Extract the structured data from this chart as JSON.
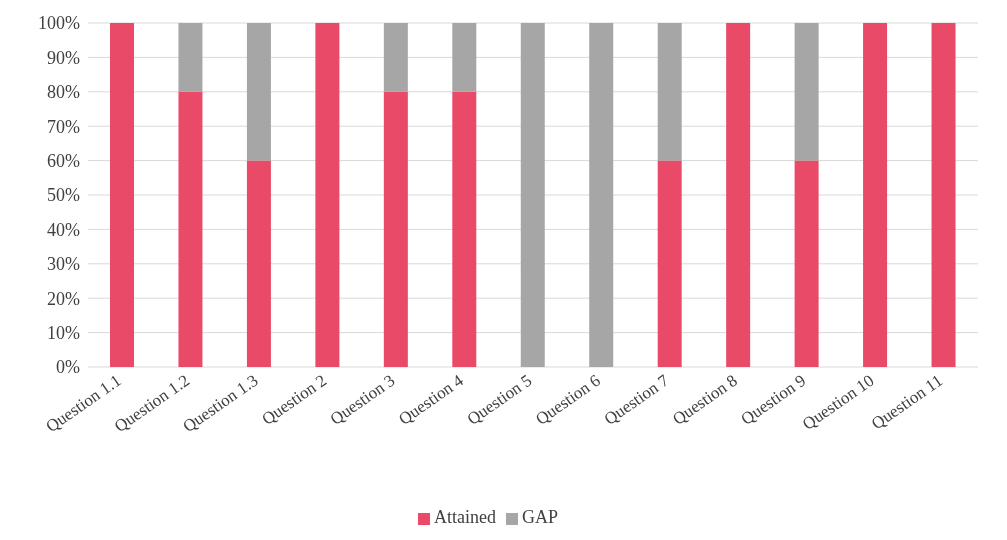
{
  "chart_data": {
    "type": "bar",
    "stacked": true,
    "categories": [
      "Question 1.1",
      "Question 1.2",
      "Question 1.3",
      "Question 2",
      "Question 3",
      "Question 4",
      "Question 5",
      "Question 6",
      "Question 7",
      "Question 8",
      "Question 9",
      "Question 10",
      "Question 11"
    ],
    "series": [
      {
        "name": "Attained",
        "color": "#e84a67",
        "values": [
          100,
          80,
          60,
          100,
          80,
          80,
          0,
          0,
          60,
          100,
          60,
          100,
          100
        ]
      },
      {
        "name": "GAP",
        "color": "#a6a6a6",
        "values": [
          0,
          20,
          40,
          0,
          20,
          20,
          100,
          100,
          40,
          0,
          40,
          0,
          0
        ]
      }
    ],
    "ylim": [
      0,
      100
    ],
    "yticks": [
      {
        "value": 0,
        "label": "0%"
      },
      {
        "value": 10,
        "label": "10%"
      },
      {
        "value": 20,
        "label": "20%"
      },
      {
        "value": 30,
        "label": "30%"
      },
      {
        "value": 40,
        "label": "40%"
      },
      {
        "value": 50,
        "label": "50%"
      },
      {
        "value": 60,
        "label": "60%"
      },
      {
        "value": 70,
        "label": "70%"
      },
      {
        "value": 80,
        "label": "80%"
      },
      {
        "value": 90,
        "label": "90%"
      },
      {
        "value": 100,
        "label": "100%"
      }
    ],
    "grid": "y",
    "legend": "bottom"
  }
}
